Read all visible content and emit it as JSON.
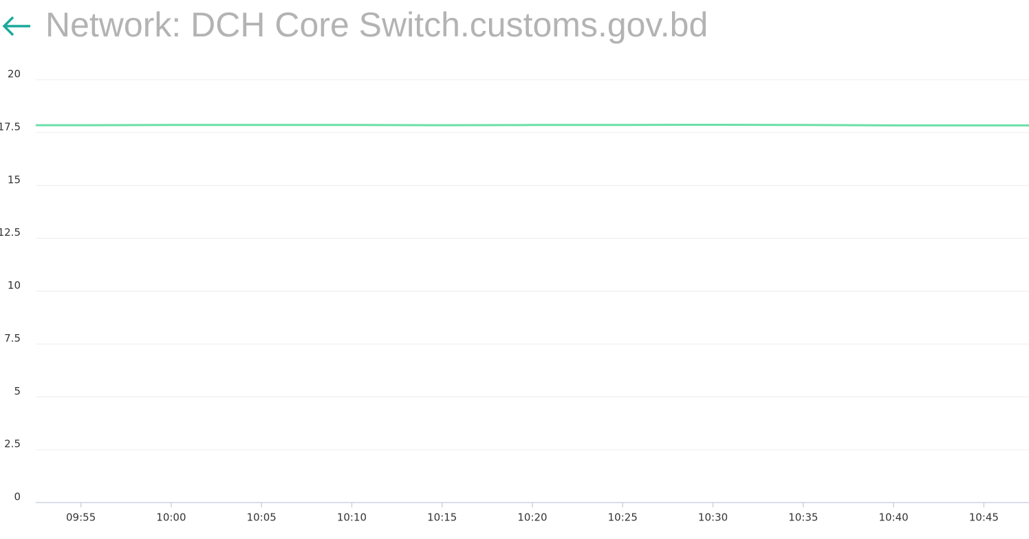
{
  "header": {
    "title": "Network: DCH Core Switch.customs.gov.bd"
  },
  "chart_data": {
    "type": "line",
    "x": [
      "09:52:30",
      "09:55",
      "10:00",
      "10:05",
      "10:10",
      "10:15",
      "10:20",
      "10:25",
      "10:30",
      "10:35",
      "10:40",
      "10:45",
      "10:47:30"
    ],
    "series": [
      {
        "color": "#6adfa6",
        "values": [
          17.85,
          17.85,
          17.86,
          17.86,
          17.86,
          17.85,
          17.86,
          17.86,
          17.87,
          17.86,
          17.84,
          17.84,
          17.84
        ]
      }
    ],
    "xlim": [
      "09:52:30",
      "10:47:30"
    ],
    "xticks": [
      "09:55",
      "10:00",
      "10:05",
      "10:10",
      "10:15",
      "10:20",
      "10:25",
      "10:30",
      "10:35",
      "10:40",
      "10:45"
    ],
    "ylim": [
      0,
      20
    ],
    "yticks": [
      0,
      2.5,
      5,
      7.5,
      10,
      12.5,
      15,
      17.5,
      20
    ],
    "grid": true
  }
}
